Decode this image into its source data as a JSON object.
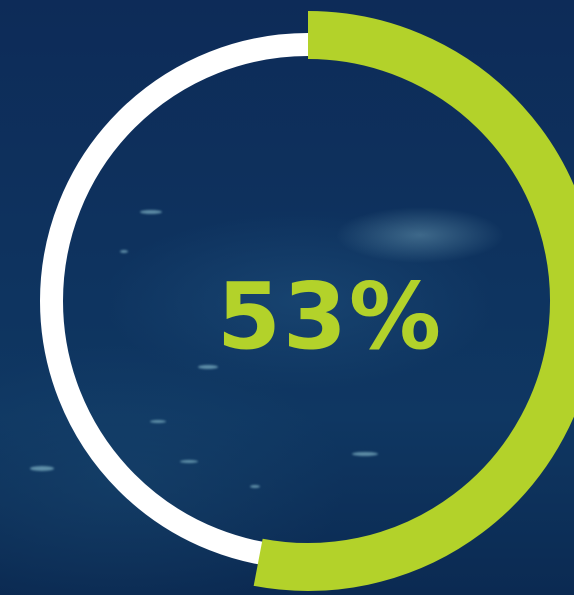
{
  "gauge": {
    "percent_label": "53%",
    "value_fraction": 0.53,
    "fill_color": "#b3d22a",
    "track_color": "#ffffff",
    "background_color": "#0d2e58"
  }
}
